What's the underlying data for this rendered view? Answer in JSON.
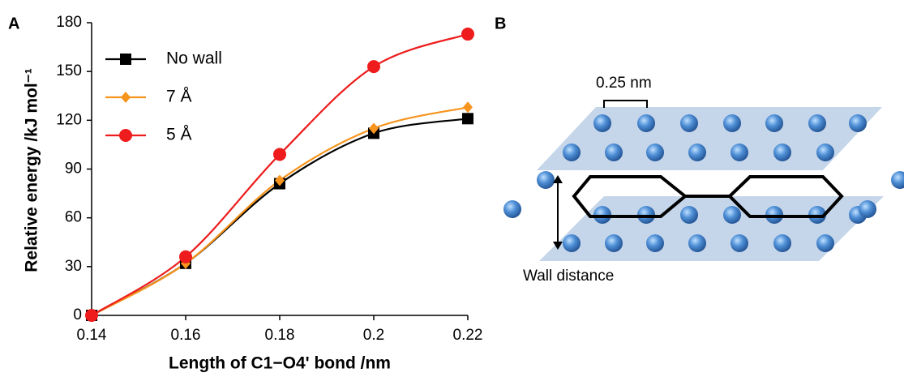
{
  "chart_data": {
    "type": "line",
    "panel_label": "A",
    "ylabel": "Relative energy /kJ mol⁻¹",
    "xlabel": "Length of C1−O4' bond /nm",
    "x": [
      0.14,
      0.16,
      0.18,
      0.2,
      0.22
    ],
    "series": [
      {
        "name": "No wall",
        "color": "#000000",
        "marker": "square",
        "values": [
          0,
          32,
          81,
          112,
          121
        ]
      },
      {
        "name": "7 Å",
        "color": "#f7941d",
        "marker": "diamond",
        "values": [
          0,
          32,
          83,
          115,
          128
        ]
      },
      {
        "name": "5 Å",
        "color": "#ee1c1c",
        "marker": "circle",
        "values": [
          0,
          36,
          99,
          153,
          173
        ]
      }
    ],
    "xlim": [
      0.14,
      0.22
    ],
    "xticks": [
      0.14,
      0.16,
      0.18,
      0.2,
      0.22
    ],
    "ylim": [
      0,
      180
    ],
    "yticks": [
      0,
      30,
      60,
      90,
      120,
      150,
      180
    ],
    "smooth": true
  },
  "diagram": {
    "panel_label": "B",
    "spacing_label": "0.25 nm",
    "wall_label": "Wall distance"
  }
}
